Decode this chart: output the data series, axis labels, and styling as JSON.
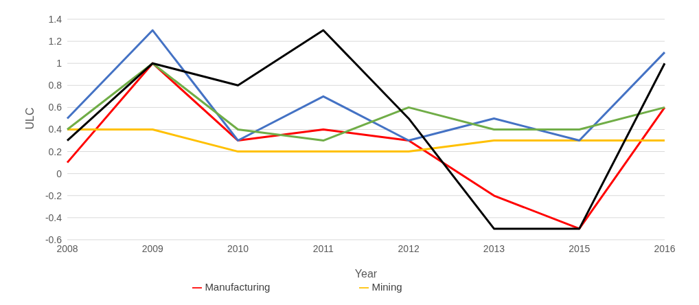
{
  "chart_data": {
    "type": "line",
    "xlabel": "Year",
    "ylabel": "ULC",
    "categories": [
      "2008",
      "2009",
      "2010",
      "2011",
      "2012",
      "2013",
      "2015",
      "2016"
    ],
    "series": [
      {
        "name": "Manufacturing",
        "color": "#ff0000",
        "values": [
          0.1,
          1,
          0.3,
          0.4,
          0.3,
          -0.2,
          -0.5,
          0.6
        ]
      },
      {
        "name": "Mining",
        "color": "#ffc000",
        "values": [
          0.4,
          0.4,
          0.2,
          0.2,
          0.2,
          0.3,
          0.3,
          0.3
        ]
      },
      {
        "color": "#4472c4",
        "values": [
          0.5,
          1.3,
          0.3,
          0.7,
          0.3,
          0.5,
          0.3,
          1.1
        ]
      },
      {
        "color": "#70ad47",
        "values": [
          0.4,
          1,
          0.4,
          0.3,
          0.6,
          0.4,
          0.4,
          0.6
        ]
      },
      {
        "color": "#000000",
        "values": [
          0.3,
          1,
          0.8,
          1.3,
          0.5,
          -0.5,
          -0.5,
          1
        ]
      }
    ],
    "ylim": [
      -0.6,
      1.4
    ],
    "yticks": [
      -0.6,
      -0.4,
      -0.2,
      0,
      0.2,
      0.4,
      0.6,
      0.8,
      1,
      1.2,
      1.4
    ],
    "grid": "y",
    "legend": "bottom",
    "marker": "none",
    "line_style": "solid"
  }
}
